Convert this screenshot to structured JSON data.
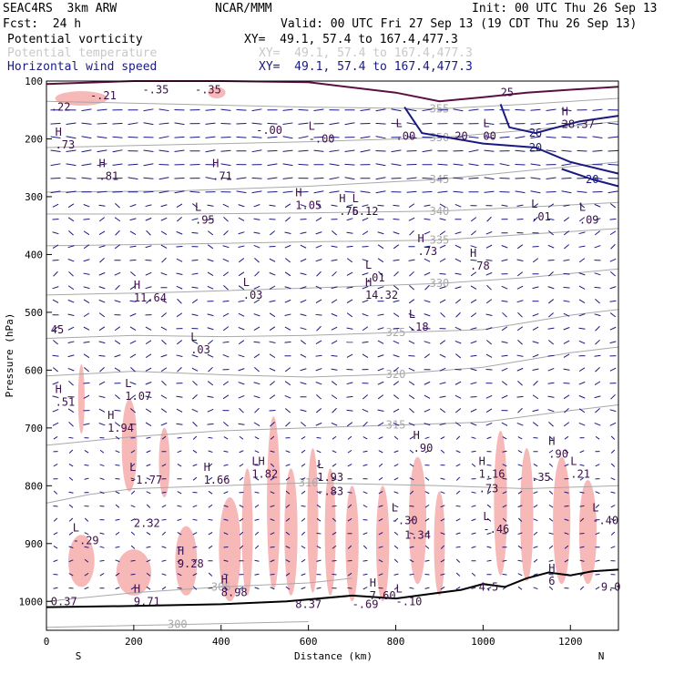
{
  "header": {
    "model": "SEAC4RS  3km ARW",
    "org": "NCAR/MMM",
    "init": "Init: 00 UTC Thu 26 Sep 13",
    "fcst": "Fcst:  24 h",
    "valid": "Valid: 00 UTC Fri 27 Sep 13 (19 CDT Thu 26 Sep 13)",
    "fields": [
      {
        "name": "Potential vorticity",
        "xy": "XY=  49.1, 57.4 to 167.4,477.3",
        "color": "#000000"
      },
      {
        "name": "Potential temperature",
        "xy": "XY=  49.1, 57.4 to 167.4,477.3",
        "color": "#c8c8c8"
      },
      {
        "name": "Horizontal wind speed",
        "xy": "XY=  49.1, 57.4 to 167.4,477.3",
        "color": "#1a1a80"
      }
    ]
  },
  "colors": {
    "theta": "#a8a8a8",
    "wind": "#1a1a80",
    "pv_fill": "#f7b8b8",
    "pv_dark": "#5a1040",
    "terrain": "#000000",
    "pv_label": "#3a1048"
  },
  "chart_data": {
    "type": "cross-section",
    "xlabel": "Distance (km)",
    "ylabel": "Pressure (hPa)",
    "xlim": [
      0,
      1310
    ],
    "ylim": [
      1050,
      100
    ],
    "x_ticks": [
      "0",
      "200",
      "400",
      "600",
      "800",
      "1000",
      "1200"
    ],
    "y_ticks": [
      "100",
      "200",
      "300",
      "400",
      "500",
      "600",
      "700",
      "800",
      "900",
      "1000"
    ],
    "x_tick_values": [
      0,
      200,
      400,
      600,
      800,
      1000,
      1200
    ],
    "y_tick_values": [
      100,
      200,
      300,
      400,
      500,
      600,
      700,
      800,
      900,
      1000
    ],
    "end_labels": {
      "left": "S",
      "right": "N"
    },
    "theta_contours": [
      {
        "label": "300",
        "points": [
          [
            0,
            1045
          ],
          [
            300,
            1040
          ],
          [
            600,
            1035
          ]
        ]
      },
      {
        "label": "305",
        "points": [
          [
            0,
            1000
          ],
          [
            200,
            985
          ],
          [
            400,
            975
          ],
          [
            600,
            968
          ],
          [
            700,
            960
          ]
        ]
      },
      {
        "label": "310",
        "points": [
          [
            0,
            830
          ],
          [
            100,
            815
          ],
          [
            200,
            805
          ],
          [
            400,
            800
          ],
          [
            600,
            795
          ],
          [
            900,
            800
          ],
          [
            1100,
            805
          ],
          [
            1310,
            800
          ]
        ]
      },
      {
        "label": "315",
        "points": [
          [
            0,
            730
          ],
          [
            200,
            715
          ],
          [
            400,
            705
          ],
          [
            600,
            700
          ],
          [
            800,
            695
          ],
          [
            1000,
            690
          ],
          [
            1200,
            670
          ],
          [
            1310,
            660
          ]
        ]
      },
      {
        "label": "320",
        "points": [
          [
            0,
            610
          ],
          [
            200,
            602
          ],
          [
            400,
            608
          ],
          [
            600,
            612
          ],
          [
            800,
            607
          ],
          [
            1000,
            595
          ],
          [
            1200,
            570
          ],
          [
            1310,
            560
          ]
        ]
      },
      {
        "label": "325",
        "points": [
          [
            0,
            545
          ],
          [
            200,
            540
          ],
          [
            400,
            542
          ],
          [
            600,
            540
          ],
          [
            800,
            535
          ],
          [
            1000,
            530
          ],
          [
            1200,
            505
          ],
          [
            1310,
            495
          ]
        ]
      },
      {
        "label": "330",
        "points": [
          [
            0,
            470
          ],
          [
            300,
            465
          ],
          [
            600,
            458
          ],
          [
            900,
            450
          ],
          [
            1100,
            440
          ],
          [
            1310,
            425
          ]
        ]
      },
      {
        "label": "335",
        "points": [
          [
            0,
            385
          ],
          [
            300,
            382
          ],
          [
            600,
            378
          ],
          [
            900,
            375
          ],
          [
            1100,
            365
          ],
          [
            1310,
            355
          ]
        ]
      },
      {
        "label": "340",
        "points": [
          [
            0,
            330
          ],
          [
            300,
            330
          ],
          [
            600,
            328
          ],
          [
            900,
            325
          ],
          [
            1100,
            318
          ],
          [
            1310,
            310
          ]
        ]
      },
      {
        "label": "345",
        "points": [
          [
            0,
            292
          ],
          [
            300,
            290
          ],
          [
            600,
            282
          ],
          [
            900,
            270
          ],
          [
            1100,
            255
          ],
          [
            1310,
            240
          ]
        ]
      },
      {
        "label": "350",
        "points": [
          [
            0,
            215
          ],
          [
            300,
            210
          ],
          [
            600,
            205
          ],
          [
            900,
            198
          ],
          [
            1100,
            185
          ],
          [
            1310,
            170
          ]
        ]
      },
      {
        "label": "355",
        "points": [
          [
            0,
            135
          ],
          [
            300,
            140
          ],
          [
            600,
            145
          ],
          [
            900,
            148
          ],
          [
            1100,
            140
          ],
          [
            1310,
            130
          ]
        ]
      }
    ],
    "wind_contours": [
      {
        "label": "20",
        "points": [
          [
            820,
            145
          ],
          [
            860,
            190
          ],
          [
            1000,
            208
          ],
          [
            1120,
            215
          ],
          [
            1200,
            240
          ],
          [
            1310,
            260
          ]
        ]
      },
      {
        "label": "20",
        "points": [
          [
            1310,
            282
          ],
          [
            1250,
            270
          ],
          [
            1180,
            252
          ]
        ]
      },
      {
        "label": "26",
        "points": [
          [
            1040,
            140
          ],
          [
            1060,
            180
          ],
          [
            1120,
            190
          ],
          [
            1220,
            170
          ],
          [
            1310,
            160
          ]
        ]
      }
    ],
    "pv_labels": [
      {
        "x": 10,
        "p": 145,
        "hl": "",
        "v": ".22"
      },
      {
        "x": 100,
        "p": 125,
        "hl": "",
        "v": "-.21"
      },
      {
        "x": 220,
        "p": 115,
        "hl": "",
        "v": "-.35"
      },
      {
        "x": 340,
        "p": 115,
        "hl": "",
        "v": "-.35"
      },
      {
        "x": 480,
        "p": 185,
        "hl": "",
        "v": "-.00"
      },
      {
        "x": 600,
        "p": 200,
        "hl": "L",
        "v": "-.00"
      },
      {
        "x": 800,
        "p": 195,
        "hl": "L",
        "v": ".00"
      },
      {
        "x": 935,
        "p": 195,
        "hl": "",
        "v": "20"
      },
      {
        "x": 1000,
        "p": 195,
        "hl": "L",
        "v": "00"
      },
      {
        "x": 1180,
        "p": 175,
        "hl": "H",
        "v": "28.37"
      },
      {
        "x": 1040,
        "p": 120,
        "hl": "",
        "v": "25"
      },
      {
        "x": 20,
        "p": 210,
        "hl": "H",
        "v": ".73"
      },
      {
        "x": 120,
        "p": 265,
        "hl": "H",
        "v": ".81"
      },
      {
        "x": 380,
        "p": 265,
        "hl": "H",
        "v": ".71"
      },
      {
        "x": 570,
        "p": 315,
        "hl": "H",
        "v": "1.05"
      },
      {
        "x": 670,
        "p": 325,
        "hl": "H",
        "v": ".75"
      },
      {
        "x": 700,
        "p": 325,
        "hl": "L",
        "v": "6.12"
      },
      {
        "x": 340,
        "p": 340,
        "hl": "L",
        "v": ".95"
      },
      {
        "x": 1110,
        "p": 335,
        "hl": "L",
        "v": ".01"
      },
      {
        "x": 1220,
        "p": 340,
        "hl": "L",
        "v": ".09"
      },
      {
        "x": 850,
        "p": 395,
        "hl": "H",
        "v": ".73"
      },
      {
        "x": 970,
        "p": 420,
        "hl": "H",
        "v": ".78"
      },
      {
        "x": 730,
        "p": 440,
        "hl": "L",
        "v": ".01"
      },
      {
        "x": 730,
        "p": 470,
        "hl": "H",
        "v": "14.32"
      },
      {
        "x": 200,
        "p": 475,
        "hl": "H",
        "v": "11.64"
      },
      {
        "x": 450,
        "p": 470,
        "hl": "L",
        "v": ".03"
      },
      {
        "x": 830,
        "p": 525,
        "hl": "L",
        "v": ".18"
      },
      {
        "x": 10,
        "p": 530,
        "hl": "",
        "v": "45"
      },
      {
        "x": 330,
        "p": 565,
        "hl": "L",
        "v": ".03"
      },
      {
        "x": 20,
        "p": 655,
        "hl": "H",
        "v": ".51"
      },
      {
        "x": 180,
        "p": 645,
        "hl": "L",
        "v": "1.07"
      },
      {
        "x": 140,
        "p": 700,
        "hl": "H",
        "v": "1.94"
      },
      {
        "x": 840,
        "p": 735,
        "hl": "H",
        "v": ".90"
      },
      {
        "x": 1150,
        "p": 745,
        "hl": "H",
        "v": ".90"
      },
      {
        "x": 1200,
        "p": 780,
        "hl": "L",
        "v": ".21"
      },
      {
        "x": 190,
        "p": 790,
        "hl": "L",
        "v": "-1.77"
      },
      {
        "x": 360,
        "p": 790,
        "hl": "H",
        "v": "1.66"
      },
      {
        "x": 470,
        "p": 780,
        "hl": "LH",
        "v": "1.82"
      },
      {
        "x": 620,
        "p": 785,
        "hl": "L",
        "v": "1.93"
      },
      {
        "x": 620,
        "p": 810,
        "hl": "",
        "v": "-.83"
      },
      {
        "x": 990,
        "p": 780,
        "hl": "H",
        "v": "1.16"
      },
      {
        "x": 990,
        "p": 805,
        "hl": "",
        "v": ".73"
      },
      {
        "x": 1110,
        "p": 785,
        "hl": "",
        "v": ".35"
      },
      {
        "x": 200,
        "p": 865,
        "hl": "",
        "v": "2.32"
      },
      {
        "x": 790,
        "p": 860,
        "hl": "L",
        "v": "-.30"
      },
      {
        "x": 820,
        "p": 885,
        "hl": "",
        "v": "1.34"
      },
      {
        "x": 1000,
        "p": 875,
        "hl": "L",
        "v": "-.46"
      },
      {
        "x": 1250,
        "p": 860,
        "hl": "L",
        "v": "-.40"
      },
      {
        "x": 60,
        "p": 895,
        "hl": "L",
        "v": "-.29"
      },
      {
        "x": 300,
        "p": 935,
        "hl": "H",
        "v": "9.28"
      },
      {
        "x": 400,
        "p": 985,
        "hl": "H",
        "v": "8.98"
      },
      {
        "x": 10,
        "p": 1000,
        "hl": "",
        "v": "0.37"
      },
      {
        "x": 200,
        "p": 1000,
        "hl": "H",
        "v": "9.71"
      },
      {
        "x": 570,
        "p": 1005,
        "hl": "",
        "v": "8.37"
      },
      {
        "x": 700,
        "p": 1005,
        "hl": "",
        "v": "-.69"
      },
      {
        "x": 740,
        "p": 990,
        "hl": "H",
        "v": "7.60"
      },
      {
        "x": 800,
        "p": 1000,
        "hl": "L",
        "v": "-.10"
      },
      {
        "x": 990,
        "p": 975,
        "hl": "",
        "v": "4.5"
      },
      {
        "x": 1150,
        "p": 965,
        "hl": "H",
        "v": "6"
      },
      {
        "x": 1270,
        "p": 975,
        "hl": "",
        "v": "9.0"
      }
    ],
    "pv_blobs": [
      {
        "x": 80,
        "p": 130,
        "w": 120,
        "h": 25
      },
      {
        "x": 390,
        "p": 120,
        "w": 40,
        "h": 20
      },
      {
        "x": 80,
        "p": 650,
        "w": 15,
        "h": 120
      },
      {
        "x": 190,
        "p": 730,
        "w": 35,
        "h": 160
      },
      {
        "x": 270,
        "p": 760,
        "w": 25,
        "h": 120
      },
      {
        "x": 80,
        "p": 930,
        "w": 60,
        "h": 90
      },
      {
        "x": 200,
        "p": 950,
        "w": 80,
        "h": 80
      },
      {
        "x": 320,
        "p": 930,
        "w": 50,
        "h": 120
      },
      {
        "x": 420,
        "p": 910,
        "w": 50,
        "h": 180
      },
      {
        "x": 460,
        "p": 880,
        "w": 25,
        "h": 220
      },
      {
        "x": 520,
        "p": 830,
        "w": 30,
        "h": 300
      },
      {
        "x": 560,
        "p": 880,
        "w": 30,
        "h": 220
      },
      {
        "x": 610,
        "p": 860,
        "w": 25,
        "h": 250
      },
      {
        "x": 650,
        "p": 880,
        "w": 25,
        "h": 220
      },
      {
        "x": 700,
        "p": 900,
        "w": 30,
        "h": 200
      },
      {
        "x": 770,
        "p": 900,
        "w": 30,
        "h": 200
      },
      {
        "x": 850,
        "p": 860,
        "w": 40,
        "h": 220
      },
      {
        "x": 900,
        "p": 900,
        "w": 25,
        "h": 180
      },
      {
        "x": 1040,
        "p": 830,
        "w": 30,
        "h": 250
      },
      {
        "x": 1100,
        "p": 850,
        "w": 30,
        "h": 230
      },
      {
        "x": 1180,
        "p": 860,
        "w": 40,
        "h": 220
      },
      {
        "x": 1240,
        "p": 880,
        "w": 40,
        "h": 180
      }
    ],
    "terrain": [
      [
        0,
        1010
      ],
      [
        200,
        1008
      ],
      [
        400,
        1005
      ],
      [
        550,
        1000
      ],
      [
        700,
        990
      ],
      [
        800,
        995
      ],
      [
        900,
        985
      ],
      [
        950,
        980
      ],
      [
        1000,
        970
      ],
      [
        1050,
        975
      ],
      [
        1100,
        960
      ],
      [
        1150,
        950
      ],
      [
        1200,
        955
      ],
      [
        1250,
        948
      ],
      [
        1310,
        945
      ]
    ],
    "tropopause": [
      [
        0,
        105
      ],
      [
        200,
        100
      ],
      [
        400,
        100
      ],
      [
        600,
        102
      ],
      [
        800,
        120
      ],
      [
        900,
        135
      ],
      [
        1000,
        128
      ],
      [
        1100,
        120
      ],
      [
        1200,
        115
      ],
      [
        1310,
        110
      ]
    ]
  }
}
